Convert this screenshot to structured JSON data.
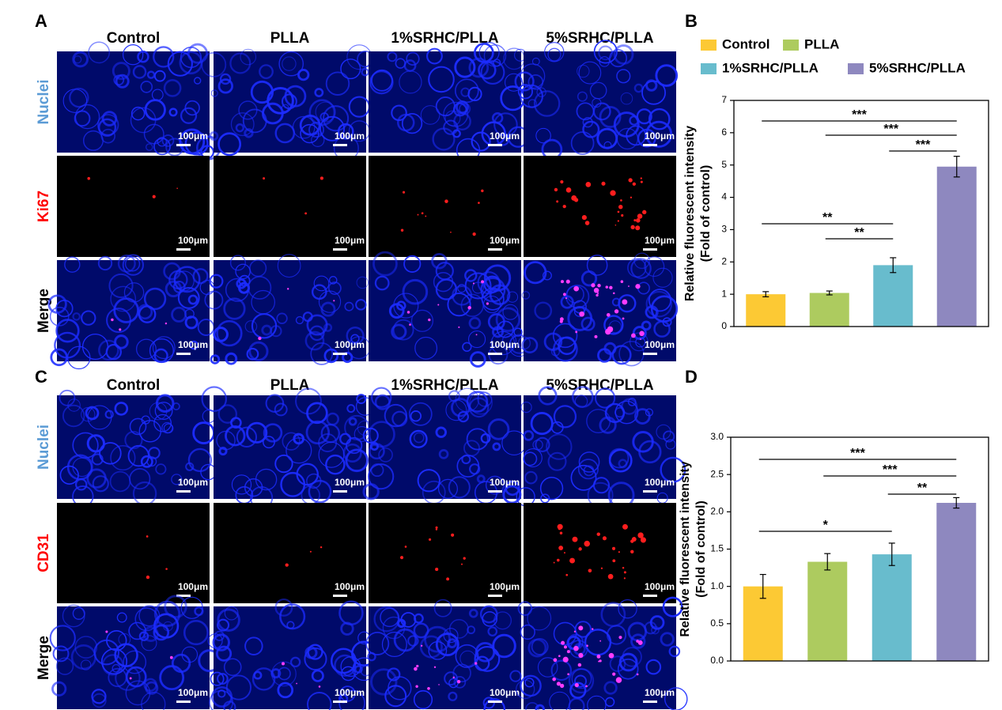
{
  "panels": [
    {
      "label": "A",
      "columns": [
        "Control",
        "PLLA",
        "1%SRHC/PLLA",
        "5%SRHC/PLLA"
      ],
      "rows": [
        "Nuclei",
        "Ki67",
        "Merge"
      ],
      "row_colors": [
        "#5b9bd5",
        "#ff0000",
        "#000000"
      ],
      "scale_bar": "100μm"
    },
    {
      "label": "C",
      "columns": [
        "Control",
        "PLLA",
        "1%SRHC/PLLA",
        "5%SRHC/PLLA"
      ],
      "rows": [
        "Nuclei",
        "CD31",
        "Merge"
      ],
      "row_colors": [
        "#5b9bd5",
        "#ff0000",
        "#000000"
      ],
      "scale_bar": "100μm"
    }
  ],
  "chart_data": [
    {
      "type": "bar",
      "panel": "B",
      "categories": [
        "Control",
        "PLLA",
        "1%SRHC/PLLA",
        "5%SRHC/PLLA"
      ],
      "values": [
        1.0,
        1.04,
        1.9,
        4.95
      ],
      "errors": [
        0.08,
        0.06,
        0.23,
        0.32
      ],
      "colors": [
        "#fcc934",
        "#adcb5f",
        "#68bccd",
        "#8e88bf"
      ],
      "ylabel": [
        "Relative fluorescent intensity",
        "(Fold of control)"
      ],
      "ylim": [
        0,
        7
      ],
      "yticks": [
        0,
        1,
        2,
        3,
        4,
        5,
        6,
        7
      ],
      "legend": true,
      "annotations": [
        {
          "text": "***",
          "from": 0,
          "to": 3
        },
        {
          "text": "***",
          "from": 1,
          "to": 3
        },
        {
          "text": "***",
          "from": 2,
          "to": 3
        },
        {
          "text": "**",
          "from": 0,
          "to": 2
        },
        {
          "text": "**",
          "from": 1,
          "to": 2
        }
      ]
    },
    {
      "type": "bar",
      "panel": "D",
      "categories": [
        "Control",
        "PLLA",
        "1%SRHC/PLLA",
        "5%SRHC/PLLA"
      ],
      "values": [
        1.0,
        1.33,
        1.43,
        2.12
      ],
      "errors": [
        0.16,
        0.11,
        0.15,
        0.07
      ],
      "colors": [
        "#fcc934",
        "#adcb5f",
        "#68bccd",
        "#8e88bf"
      ],
      "ylabel": [
        "Relative fluorescent intensity",
        "(Fold of control)"
      ],
      "ylim": [
        0,
        3
      ],
      "yticks": [
        {
          "value": 0,
          "label": "0.0"
        },
        0.5,
        {
          "value": 1,
          "label": "1.0"
        },
        1.5,
        {
          "value": 2,
          "label": "2.0"
        },
        2.5,
        {
          "value": 3,
          "label": "3.0"
        }
      ],
      "legend": false,
      "annotations": [
        {
          "text": "***",
          "from": 0,
          "to": 3
        },
        {
          "text": "***",
          "from": 1,
          "to": 3
        },
        {
          "text": "**",
          "from": 2,
          "to": 3
        },
        {
          "text": "*",
          "from": 0,
          "to": 2
        }
      ]
    }
  ]
}
